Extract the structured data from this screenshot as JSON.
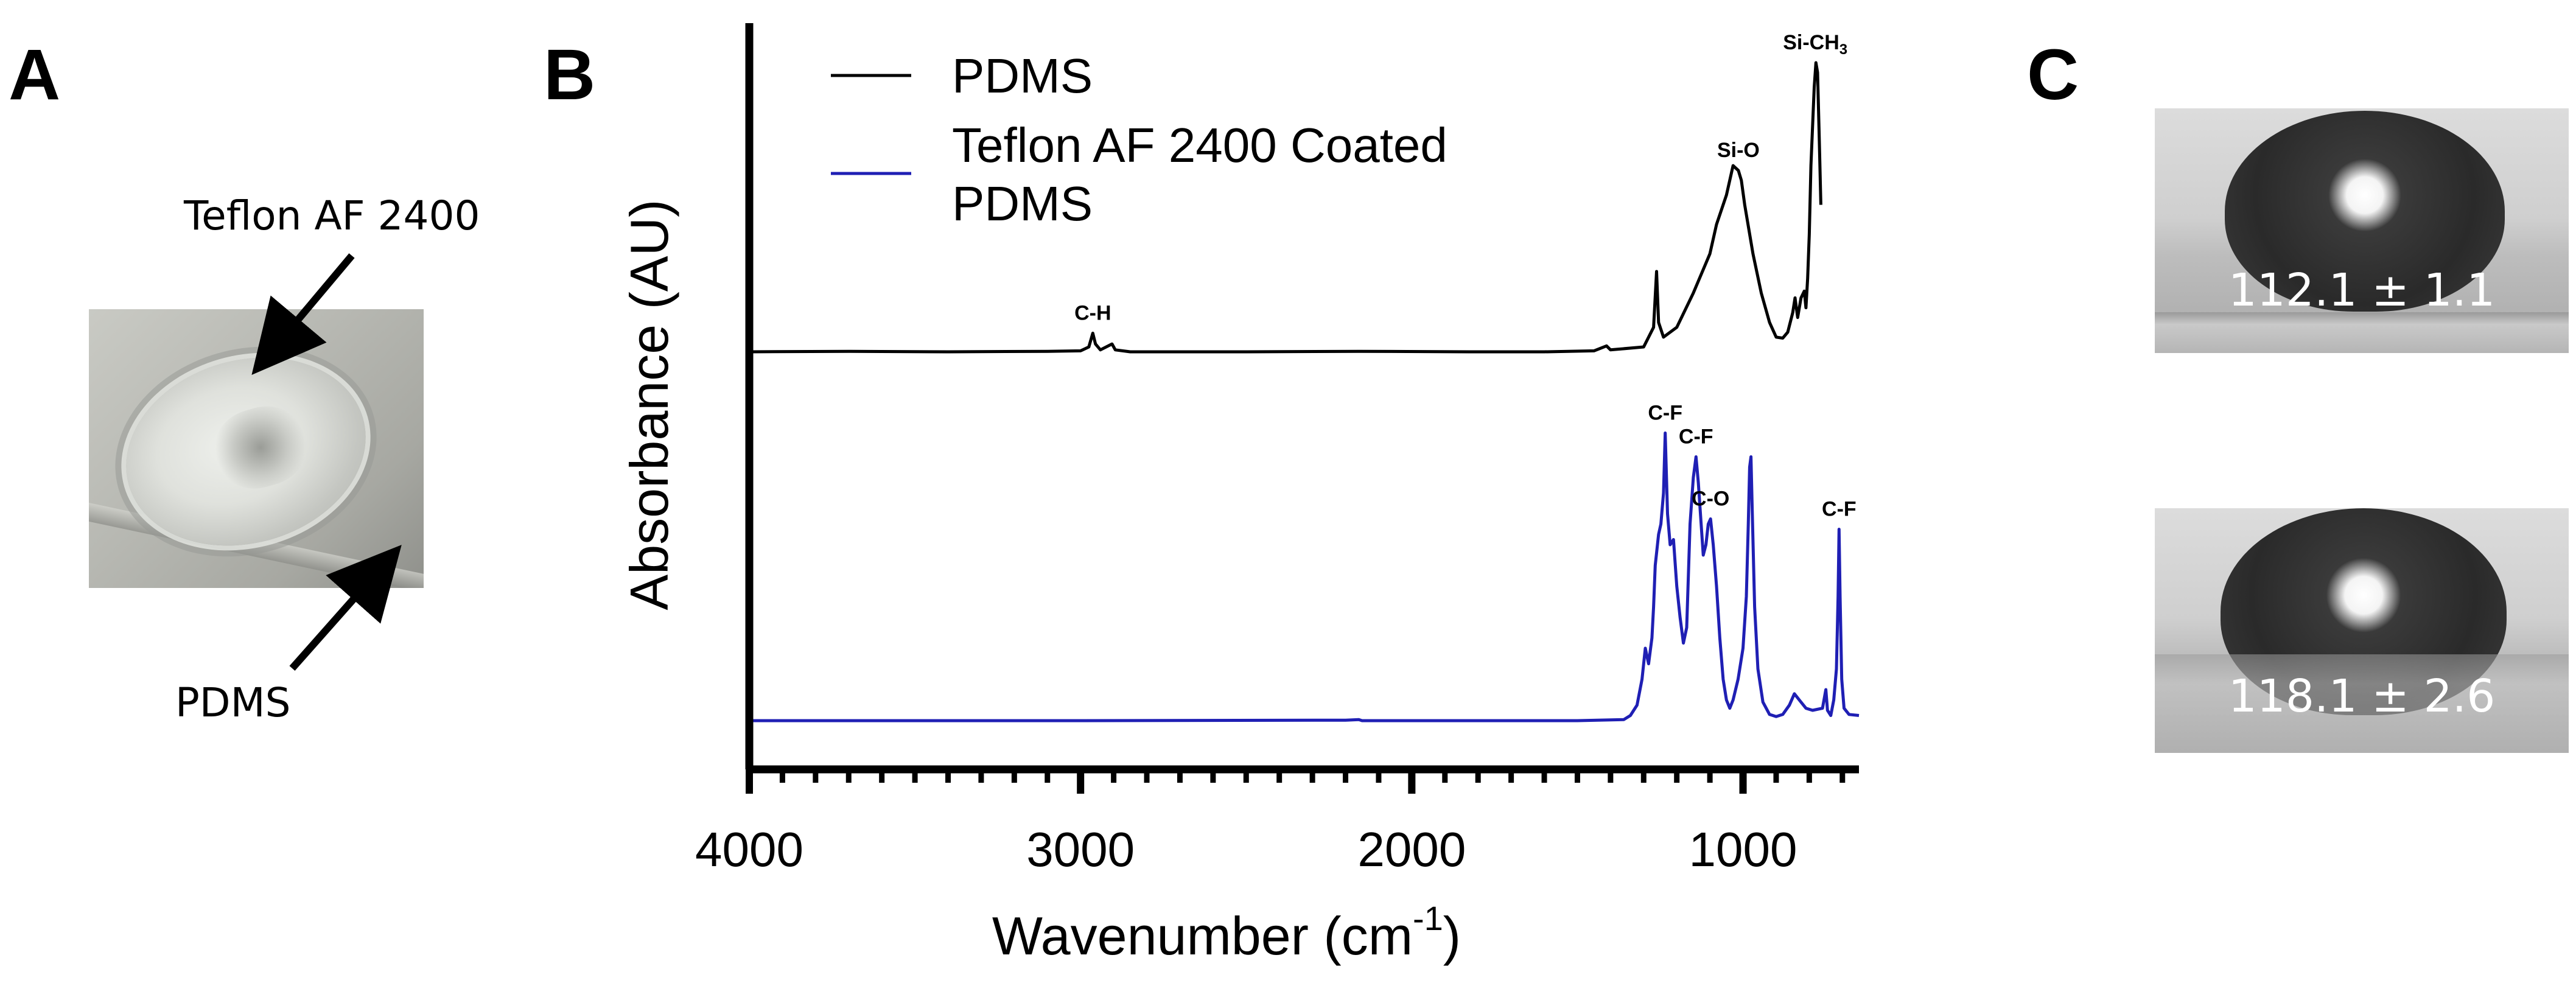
{
  "panels": {
    "a": {
      "letter": "A",
      "label_teflon": "Teflon AF 2400",
      "label_pdms": "PDMS"
    },
    "b": {
      "letter": "B"
    },
    "c": {
      "letter": "C",
      "angle_top": "112.1 ± 1.1",
      "angle_bottom": "118.1 ± 2.6"
    }
  },
  "chart_data": {
    "type": "line",
    "xlabel": "Wavenumber (cm⁻¹)",
    "xlabel_main": "Wavenumber (cm",
    "xlabel_sup": "-1",
    "xlabel_close": ")",
    "ylabel": "Absorbance (AU)",
    "x_reversed": true,
    "xlim": [
      4000,
      650
    ],
    "xticks": [
      4000,
      3000,
      2000,
      1000
    ],
    "xtick_labels": [
      "4000",
      "3000",
      "2000",
      "1000"
    ],
    "y_ticks": "none",
    "legend": {
      "placement": "top-left"
    },
    "series": [
      {
        "name": "PDMS",
        "color": "#000000",
        "baseline": 0,
        "points": [
          [
            4000,
            0
          ],
          [
            3700,
            0.005
          ],
          [
            3400,
            0
          ],
          [
            3100,
            0.005
          ],
          [
            3000,
            0.01
          ],
          [
            2975,
            0.05
          ],
          [
            2963,
            0.19
          ],
          [
            2955,
            0.08
          ],
          [
            2940,
            0.02
          ],
          [
            2905,
            0.08
          ],
          [
            2895,
            0.02
          ],
          [
            2850,
            0
          ],
          [
            2500,
            0
          ],
          [
            2160,
            0.005
          ],
          [
            1800,
            0
          ],
          [
            1600,
            0
          ],
          [
            1450,
            0.01
          ],
          [
            1412,
            0.06
          ],
          [
            1400,
            0.02
          ],
          [
            1300,
            0.05
          ],
          [
            1270,
            0.25
          ],
          [
            1261,
            0.82
          ],
          [
            1255,
            0.3
          ],
          [
            1240,
            0.15
          ],
          [
            1200,
            0.25
          ],
          [
            1150,
            0.6
          ],
          [
            1100,
            1.0
          ],
          [
            1080,
            1.3
          ],
          [
            1050,
            1.6
          ],
          [
            1030,
            1.9
          ],
          [
            1014,
            1.85
          ],
          [
            1005,
            1.75
          ],
          [
            995,
            1.5
          ],
          [
            970,
            1.0
          ],
          [
            945,
            0.6
          ],
          [
            920,
            0.3
          ],
          [
            900,
            0.15
          ],
          [
            880,
            0.14
          ],
          [
            865,
            0.2
          ],
          [
            850,
            0.4
          ],
          [
            843,
            0.55
          ],
          [
            835,
            0.35
          ],
          [
            825,
            0.55
          ],
          [
            815,
            0.62
          ],
          [
            810,
            0.45
          ],
          [
            805,
            0.75
          ],
          [
            800,
            1.2
          ],
          [
            795,
            1.9
          ],
          [
            790,
            2.3
          ],
          [
            785,
            2.7
          ],
          [
            780,
            2.95
          ],
          [
            775,
            2.85
          ],
          [
            770,
            2.2
          ],
          [
            765,
            1.5
          ]
        ]
      },
      {
        "name": "Teflon AF 2400 Coated PDMS",
        "color": "#1f1fb4",
        "baseline": 0,
        "points": [
          [
            4000,
            0
          ],
          [
            3000,
            0
          ],
          [
            2200,
            0.005
          ],
          [
            2160,
            0.01
          ],
          [
            2150,
            0
          ],
          [
            1500,
            0
          ],
          [
            1360,
            0.01
          ],
          [
            1340,
            0.05
          ],
          [
            1320,
            0.15
          ],
          [
            1305,
            0.4
          ],
          [
            1295,
            0.7
          ],
          [
            1285,
            0.55
          ],
          [
            1275,
            0.8
          ],
          [
            1270,
            1.1
          ],
          [
            1265,
            1.5
          ],
          [
            1255,
            1.8
          ],
          [
            1248,
            1.9
          ],
          [
            1240,
            2.2
          ],
          [
            1235,
            2.78
          ],
          [
            1228,
            2.0
          ],
          [
            1220,
            1.7
          ],
          [
            1210,
            1.75
          ],
          [
            1200,
            1.3
          ],
          [
            1190,
            1.0
          ],
          [
            1180,
            0.75
          ],
          [
            1170,
            0.9
          ],
          [
            1160,
            1.9
          ],
          [
            1150,
            2.35
          ],
          [
            1142,
            2.55
          ],
          [
            1135,
            2.3
          ],
          [
            1120,
            1.6
          ],
          [
            1112,
            1.7
          ],
          [
            1105,
            1.9
          ],
          [
            1098,
            1.95
          ],
          [
            1090,
            1.7
          ],
          [
            1080,
            1.3
          ],
          [
            1070,
            0.8
          ],
          [
            1060,
            0.4
          ],
          [
            1050,
            0.2
          ],
          [
            1040,
            0.12
          ],
          [
            1030,
            0.2
          ],
          [
            1015,
            0.4
          ],
          [
            1000,
            0.7
          ],
          [
            990,
            1.2
          ],
          [
            984,
            1.9
          ],
          [
            980,
            2.45
          ],
          [
            976,
            2.55
          ],
          [
            972,
            2.0
          ],
          [
            965,
            1.1
          ],
          [
            955,
            0.5
          ],
          [
            940,
            0.18
          ],
          [
            920,
            0.06
          ],
          [
            900,
            0.04
          ],
          [
            880,
            0.06
          ],
          [
            860,
            0.15
          ],
          [
            845,
            0.26
          ],
          [
            830,
            0.2
          ],
          [
            810,
            0.12
          ],
          [
            790,
            0.1
          ],
          [
            760,
            0.12
          ],
          [
            750,
            0.3
          ],
          [
            745,
            0.1
          ],
          [
            735,
            0.05
          ],
          [
            726,
            0.2
          ],
          [
            718,
            0.5
          ],
          [
            713,
            1.2
          ],
          [
            710,
            1.85
          ],
          [
            707,
            1.2
          ],
          [
            702,
            0.4
          ],
          [
            695,
            0.12
          ],
          [
            680,
            0.06
          ],
          [
            650,
            0.05
          ]
        ]
      }
    ],
    "legend_entries": [
      {
        "label": "PDMS",
        "color": "#000000"
      },
      {
        "label_line1": "Teflon AF 2400 Coated",
        "label_line2": "PDMS",
        "color": "#1f1fb4"
      }
    ],
    "annotations": [
      {
        "text": "C-H",
        "x": 2963,
        "series": "PDMS"
      },
      {
        "text": "Si-O",
        "x": 1014,
        "series": "PDMS"
      },
      {
        "text": "Si-CH",
        "sub": "3",
        "x": 782,
        "series": "PDMS"
      },
      {
        "text": "C-F",
        "x": 1235,
        "series": "Teflon AF 2400 Coated PDMS"
      },
      {
        "text": "C-F",
        "x": 1142,
        "series": "Teflon AF 2400 Coated PDMS"
      },
      {
        "text": "C-O",
        "x": 1098,
        "series": "Teflon AF 2400 Coated PDMS"
      },
      {
        "text": "C-F",
        "x": 710,
        "series": "Teflon AF 2400 Coated PDMS"
      }
    ]
  }
}
